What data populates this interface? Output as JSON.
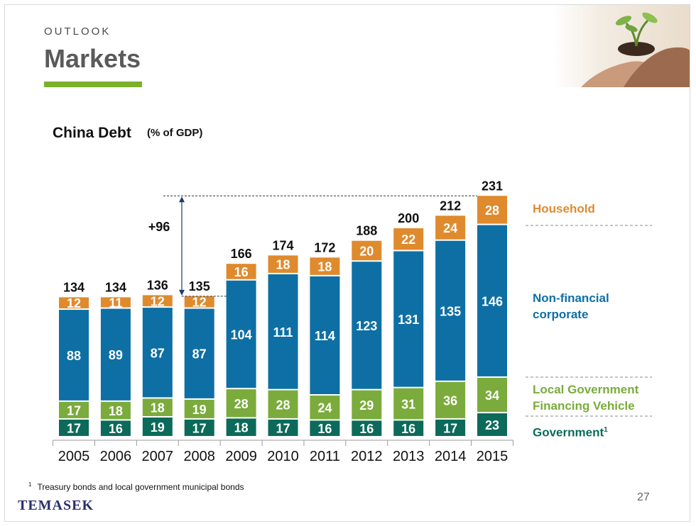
{
  "header": {
    "section": "OUTLOOK",
    "title": "Markets"
  },
  "colors": {
    "household": "#e08a2e",
    "non_financial_corporate": "#0e6fa5",
    "lgfv": "#7bab3c",
    "government": "#0c6a5a",
    "accent_bar": "#7bb22b"
  },
  "chart_data": {
    "type": "bar",
    "stacked": true,
    "title": "China Debt",
    "subtitle": "(% of GDP)",
    "categories": [
      "2005",
      "2006",
      "2007",
      "2008",
      "2009",
      "2010",
      "2011",
      "2012",
      "2013",
      "2014",
      "2015"
    ],
    "series": [
      {
        "name": "Government",
        "values": [
          17,
          16,
          19,
          17,
          18,
          17,
          16,
          16,
          16,
          17,
          23
        ]
      },
      {
        "name": "Local Government Financing Vehicle",
        "values": [
          17,
          18,
          18,
          19,
          28,
          28,
          24,
          29,
          31,
          36,
          34
        ]
      },
      {
        "name": "Non-financial corporate",
        "values": [
          88,
          89,
          87,
          87,
          104,
          111,
          114,
          123,
          131,
          135,
          146
        ]
      },
      {
        "name": "Household",
        "values": [
          12,
          11,
          12,
          12,
          16,
          18,
          18,
          20,
          22,
          24,
          28
        ]
      }
    ],
    "totals": [
      134,
      134,
      136,
      135,
      166,
      174,
      172,
      188,
      200,
      212,
      231
    ],
    "annotation": "+96",
    "legend_position": "right",
    "grid": false
  },
  "legend": {
    "household": "Household",
    "non_financial_line1": "Non-financial",
    "non_financial_line2": "corporate",
    "lgfv_line1": "Local Government",
    "lgfv_line2": "Financing Vehicle",
    "government": "Government",
    "government_sup": "1"
  },
  "footnote": {
    "marker": "1",
    "text": "Treasury bonds and local government municipal bonds"
  },
  "logo": "TEMASEK",
  "page_number": "27"
}
